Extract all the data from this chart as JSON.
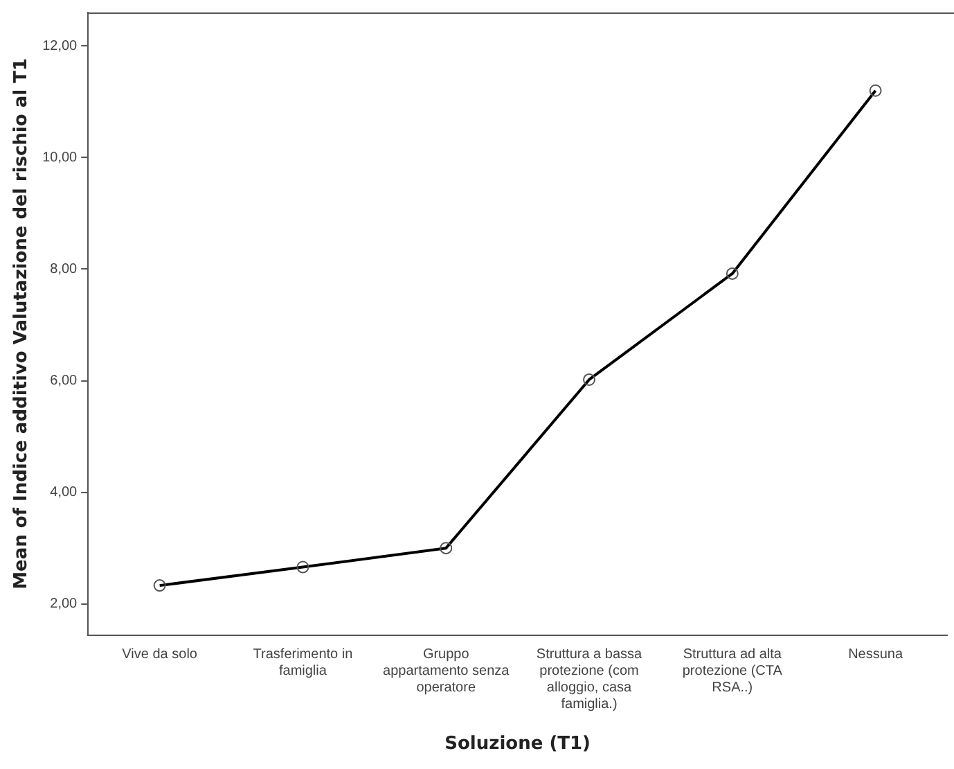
{
  "chart_data": {
    "type": "line",
    "xlabel": "Soluzione (T1)",
    "ylabel": "Mean of Indice additivo Valutazione del rischio al T1",
    "categories": [
      "Vive da solo",
      "Trasferimento in famiglia",
      "Gruppo appartamento senza operatore",
      "Struttura a bassa protezione (com alloggio, casa famiglia.)",
      "Struttura ad alta protezione (CTA RSA..)",
      "Nessuna"
    ],
    "series": [
      {
        "color": "#000000",
        "values": [
          2.33,
          2.66,
          3.0,
          6.02,
          7.92,
          11.2
        ]
      }
    ],
    "ylim": [
      1.44,
      12.6
    ],
    "yticks": [
      {
        "value": 2,
        "label": "2,00"
      },
      {
        "value": 4,
        "label": "4,00"
      },
      {
        "value": 6,
        "label": "6,00"
      },
      {
        "value": 8,
        "label": "8,00"
      },
      {
        "value": 10,
        "label": "10,00"
      },
      {
        "value": 12,
        "label": "12,00"
      }
    ],
    "grid": false,
    "legend": false,
    "marker": "circle",
    "line_style": "solid"
  }
}
